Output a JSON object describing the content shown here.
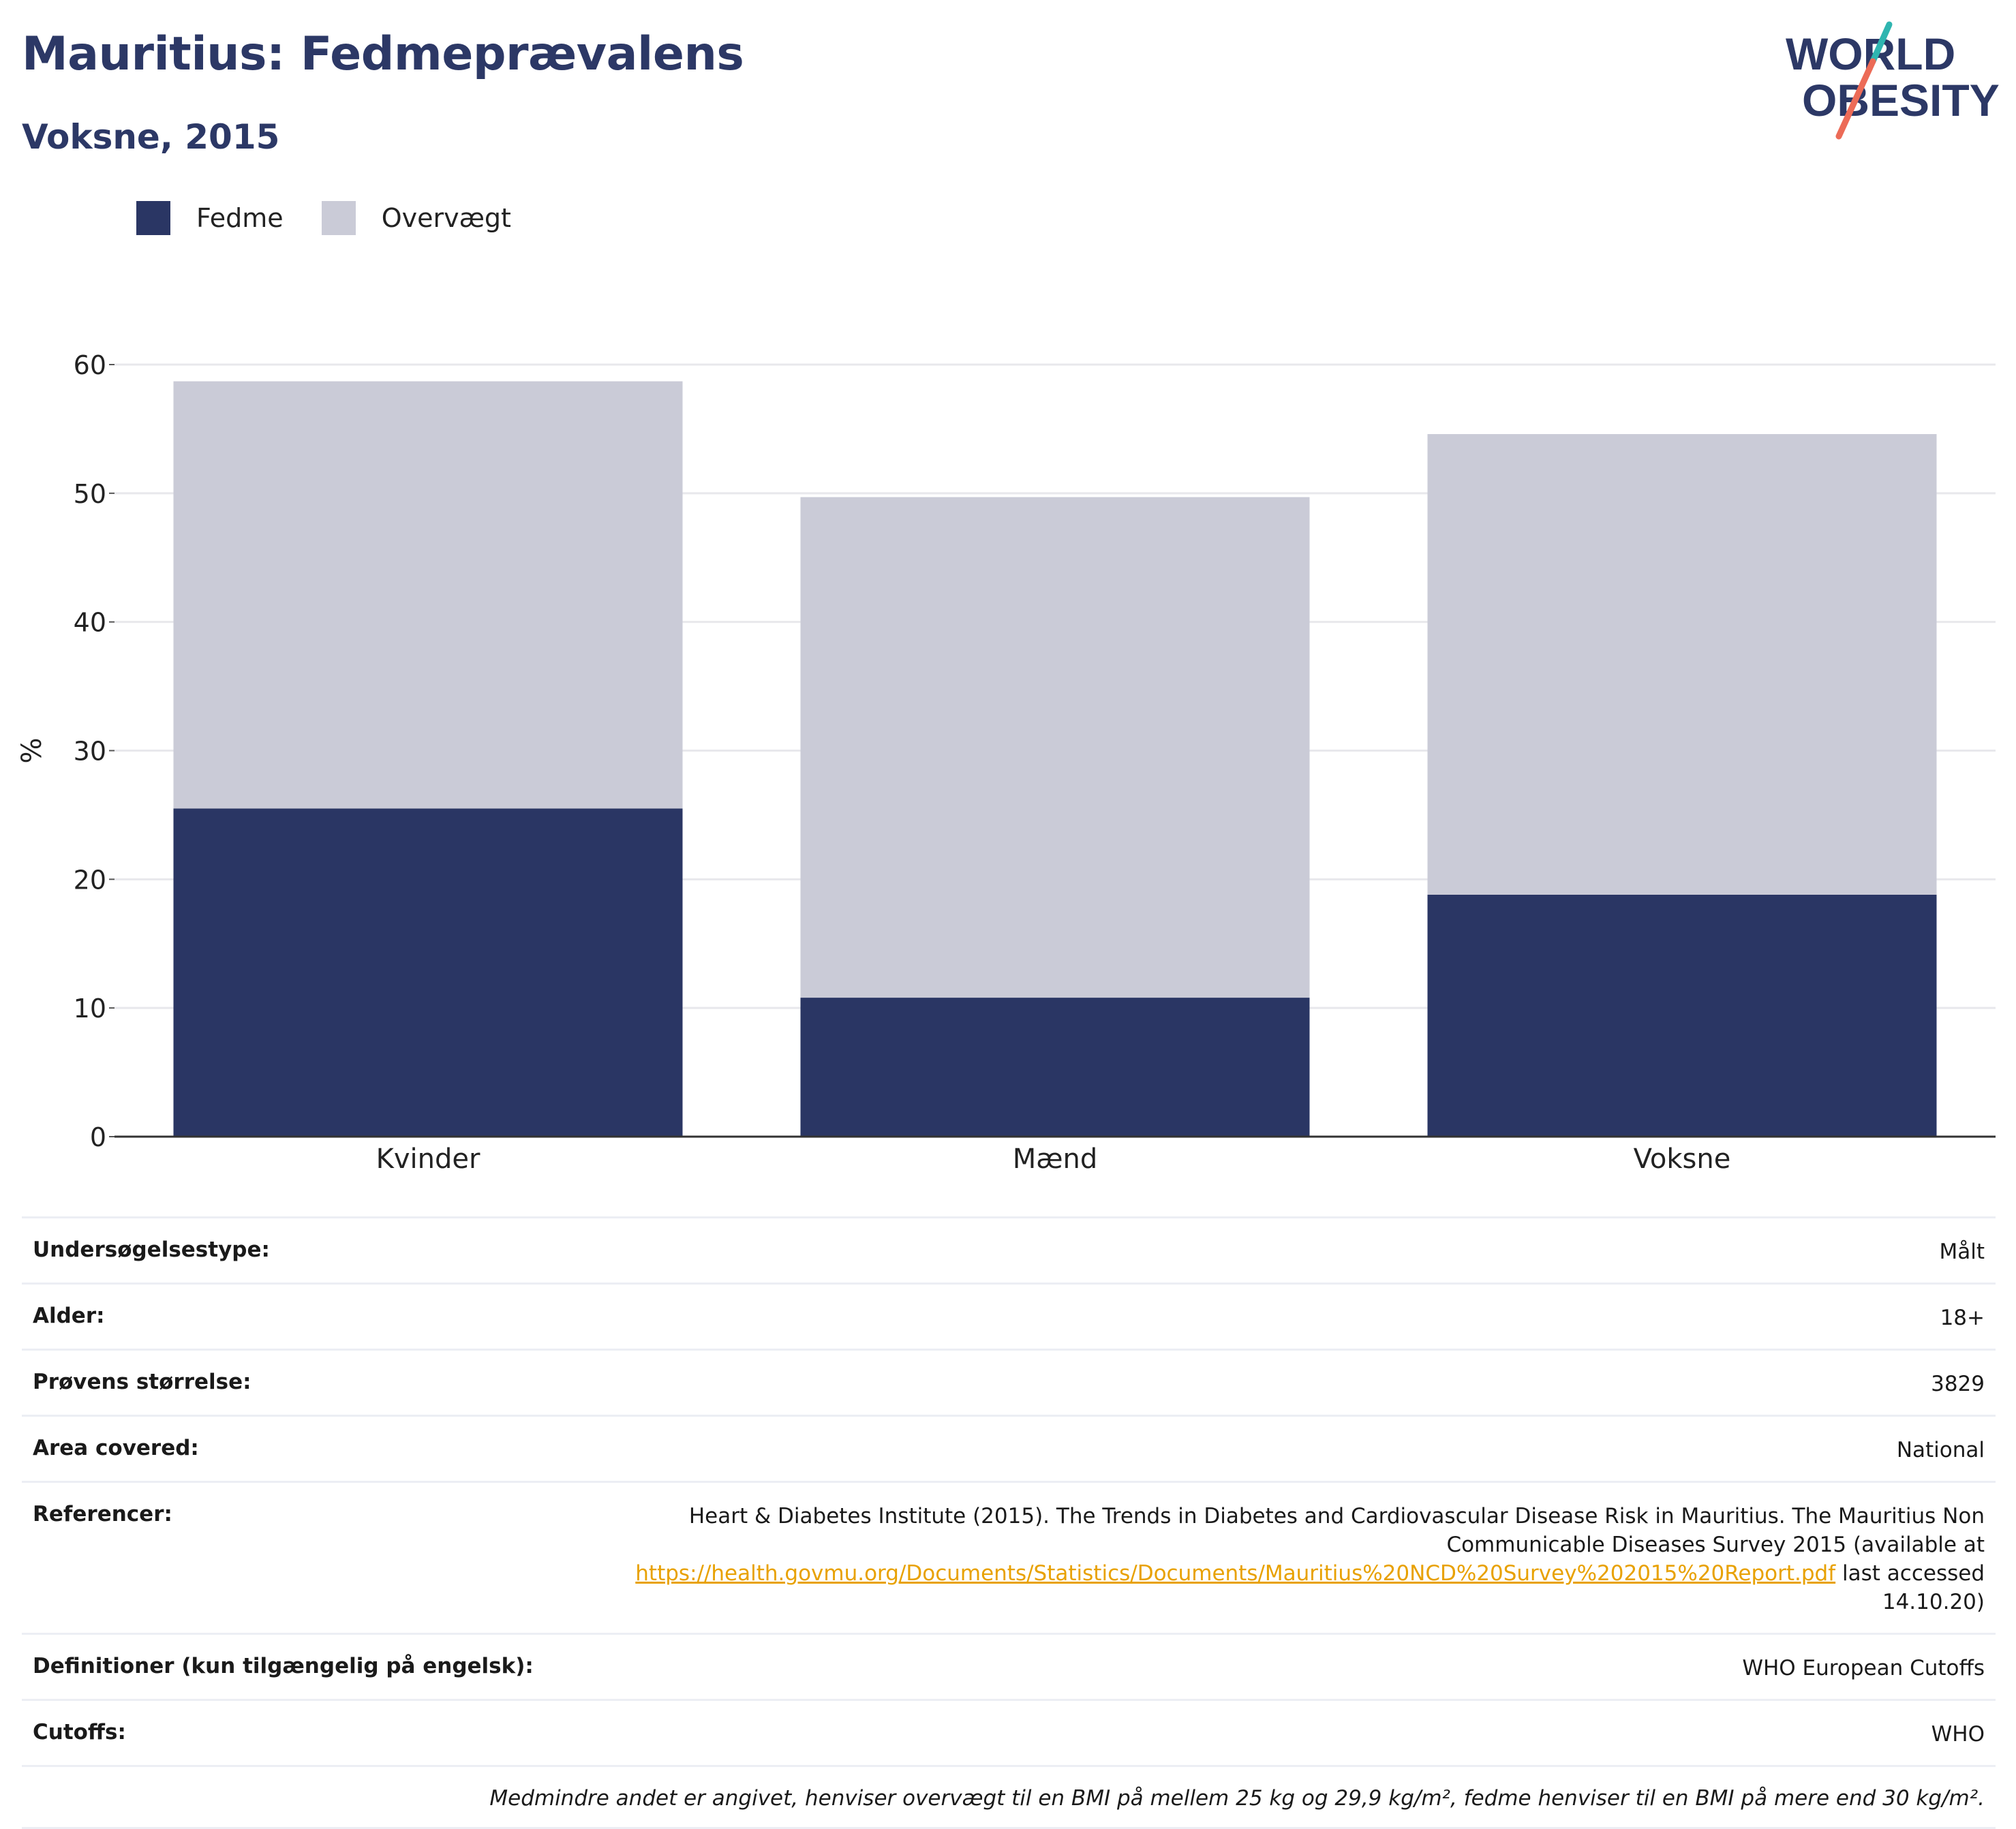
{
  "header": {
    "title": "Mauritius: Fedmeprævalens",
    "subtitle": "Voksne, 2015",
    "logo_line1": "WORLD",
    "logo_line2": "OBESITY"
  },
  "colors": {
    "obesity": "#2a3664",
    "overweight": "#cacbd7",
    "title": "#2c3866",
    "link": "#e8a100",
    "logo_teal": "#2fb5b0",
    "logo_coral": "#ec6b57"
  },
  "legend": [
    {
      "label": "Fedme",
      "color": "#2a3664"
    },
    {
      "label": "Overvægt",
      "color": "#cacbd7"
    }
  ],
  "chart_data": {
    "type": "bar",
    "stacked": true,
    "categories": [
      "Kvinder",
      "Mænd",
      "Voksne"
    ],
    "series": [
      {
        "name": "Fedme",
        "values": [
          25.5,
          10.8,
          18.8
        ]
      },
      {
        "name": "Overvægt",
        "values": [
          33.2,
          38.9,
          35.8
        ]
      }
    ],
    "ylabel": "%",
    "ylim": [
      0,
      60
    ],
    "yticks": [
      0,
      10,
      20,
      30,
      40,
      50,
      60
    ],
    "grid": true,
    "legend_position": "top-left"
  },
  "info": {
    "rows": [
      {
        "key": "Undersøgelsestype:",
        "value": "Målt"
      },
      {
        "key": "Alder:",
        "value": "18+"
      },
      {
        "key": "Prøvens størrelse:",
        "value": "3829"
      },
      {
        "key": "Area covered:",
        "value": "National"
      }
    ],
    "reference": {
      "key": "Referencer:",
      "text_before": "Heart & Diabetes Institute (2015). The Trends in Diabetes and Cardiovascular Disease Risk in Mauritius. The Mauritius Non Communicable Diseases Survey 2015 (available at",
      "link": "https://health.govmu.org/Documents/Statistics/Documents/Mauritius%20NCD%20Survey%202015%20Report.pdf",
      "text_after": "last accessed 14.10.20)"
    },
    "rows2": [
      {
        "key": "Definitioner (kun tilgængelig på engelsk):",
        "value": "WHO European Cutoffs"
      },
      {
        "key": "Cutoffs:",
        "value": "WHO"
      }
    ],
    "note": "Medmindre andet er angivet, henviser overvægt til en BMI på mellem 25 kg og 29,9 kg/m², fedme henviser til en BMI på mere end 30 kg/m²."
  }
}
